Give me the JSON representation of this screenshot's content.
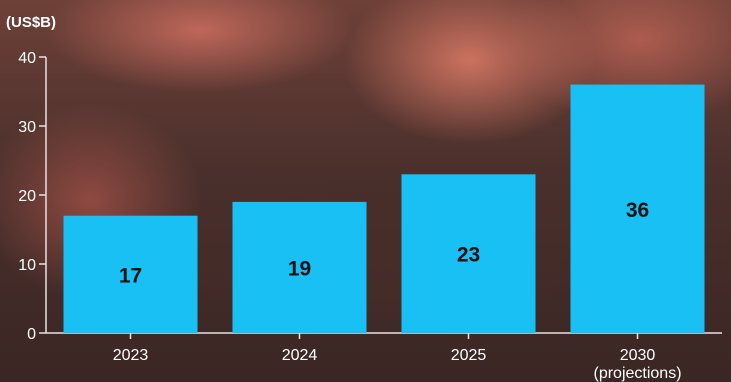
{
  "chart_data": {
    "type": "bar",
    "title": "",
    "unit_label": "(US$B)",
    "xlabel": "",
    "ylabel": "",
    "categories": [
      "2023",
      "2024",
      "2025",
      "2030\n(projections)"
    ],
    "values": [
      17,
      19,
      23,
      36
    ],
    "data_labels": [
      "17",
      "19",
      "23",
      "36"
    ],
    "ylim": [
      0,
      40
    ],
    "yticks": [
      0,
      10,
      20,
      30,
      40
    ],
    "grid": false,
    "legend": "none",
    "colors": {
      "bar": "#19c0f4",
      "axis": "#e8e2e0",
      "tick_label": "#ffffff",
      "data_label": "#111111"
    }
  }
}
